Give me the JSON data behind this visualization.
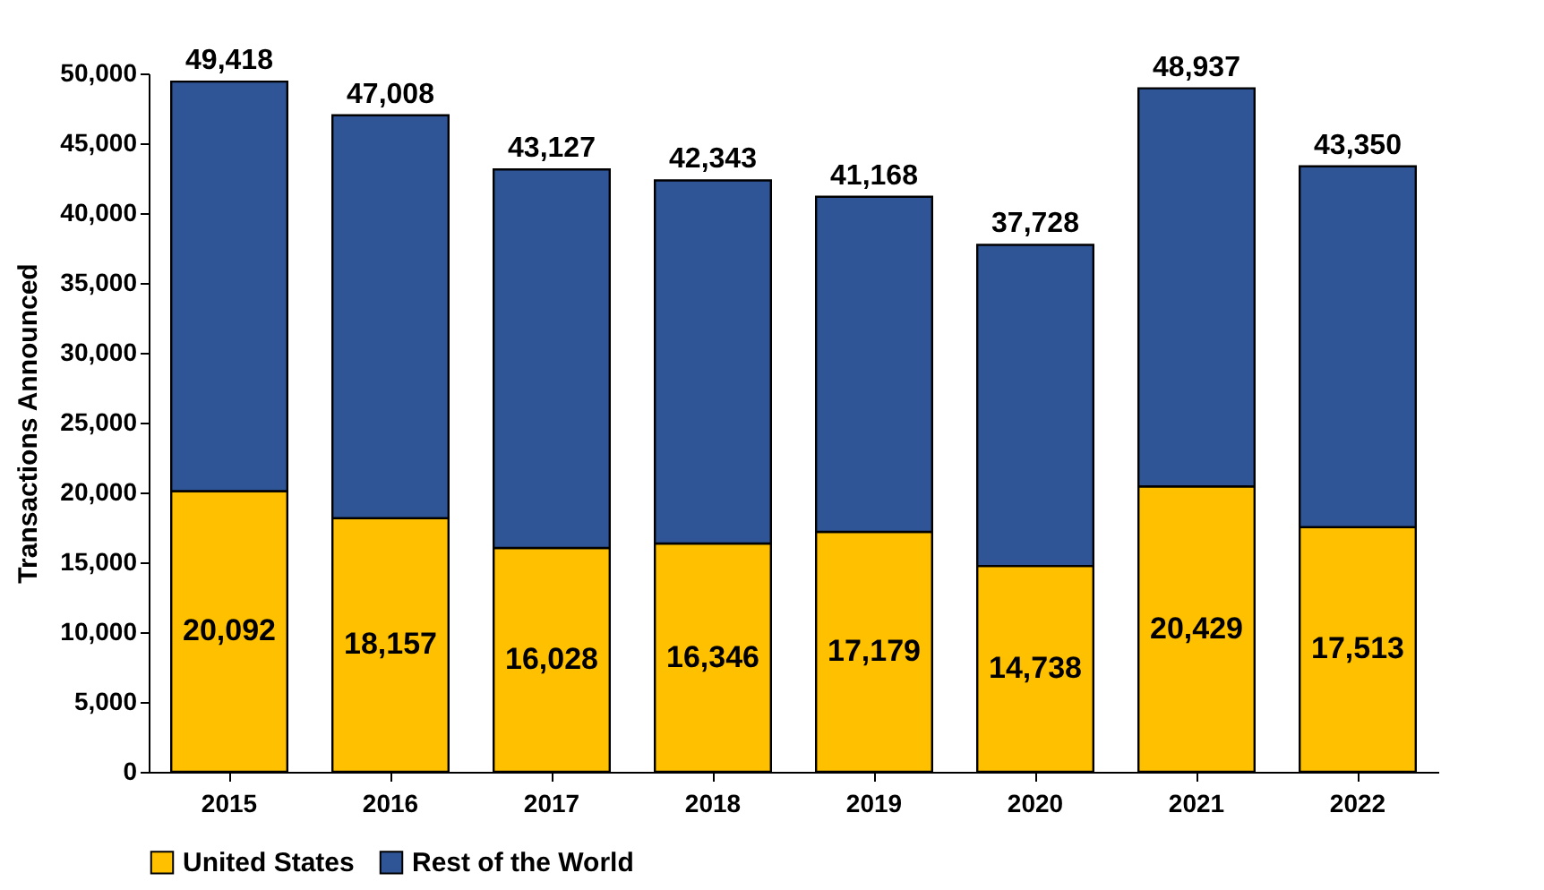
{
  "chart_data": {
    "type": "bar",
    "stacked": true,
    "ylabel": "Transactions Announced",
    "categories": [
      "2015",
      "2016",
      "2017",
      "2018",
      "2019",
      "2020",
      "2021",
      "2022"
    ],
    "series": [
      {
        "name": "United States",
        "color": "#ffc000",
        "values": [
          20092,
          18157,
          16028,
          16346,
          17179,
          14738,
          20429,
          17513
        ],
        "value_labels": [
          "20,092",
          "18,157",
          "16,028",
          "16,346",
          "17,179",
          "14,738",
          "20,429",
          "17,513"
        ]
      },
      {
        "name": "Rest of the World",
        "color": "#2f5597",
        "values": [
          29326,
          28851,
          27099,
          25997,
          23989,
          22990,
          28508,
          25837
        ]
      }
    ],
    "totals": [
      "49,418",
      "47,008",
      "43,127",
      "42,343",
      "41,168",
      "37,728",
      "48,937",
      "43,350"
    ],
    "ylim": [
      0,
      50000
    ],
    "yticks": [
      0,
      {
        "value": 5000,
        "label": "5,000"
      },
      {
        "value": 10000,
        "label": "10,000"
      },
      {
        "value": 15000,
        "label": "15,000"
      },
      {
        "value": 20000,
        "label": "20,000"
      },
      {
        "value": 25000,
        "label": "25,000"
      },
      {
        "value": 30000,
        "label": "30,000"
      },
      {
        "value": 35000,
        "label": "35,000"
      },
      {
        "value": 40000,
        "label": "40,000"
      },
      {
        "value": 45000,
        "label": "45,000"
      },
      {
        "value": 50000,
        "label": "50,000"
      }
    ],
    "grid": false,
    "legend": "bottom"
  }
}
